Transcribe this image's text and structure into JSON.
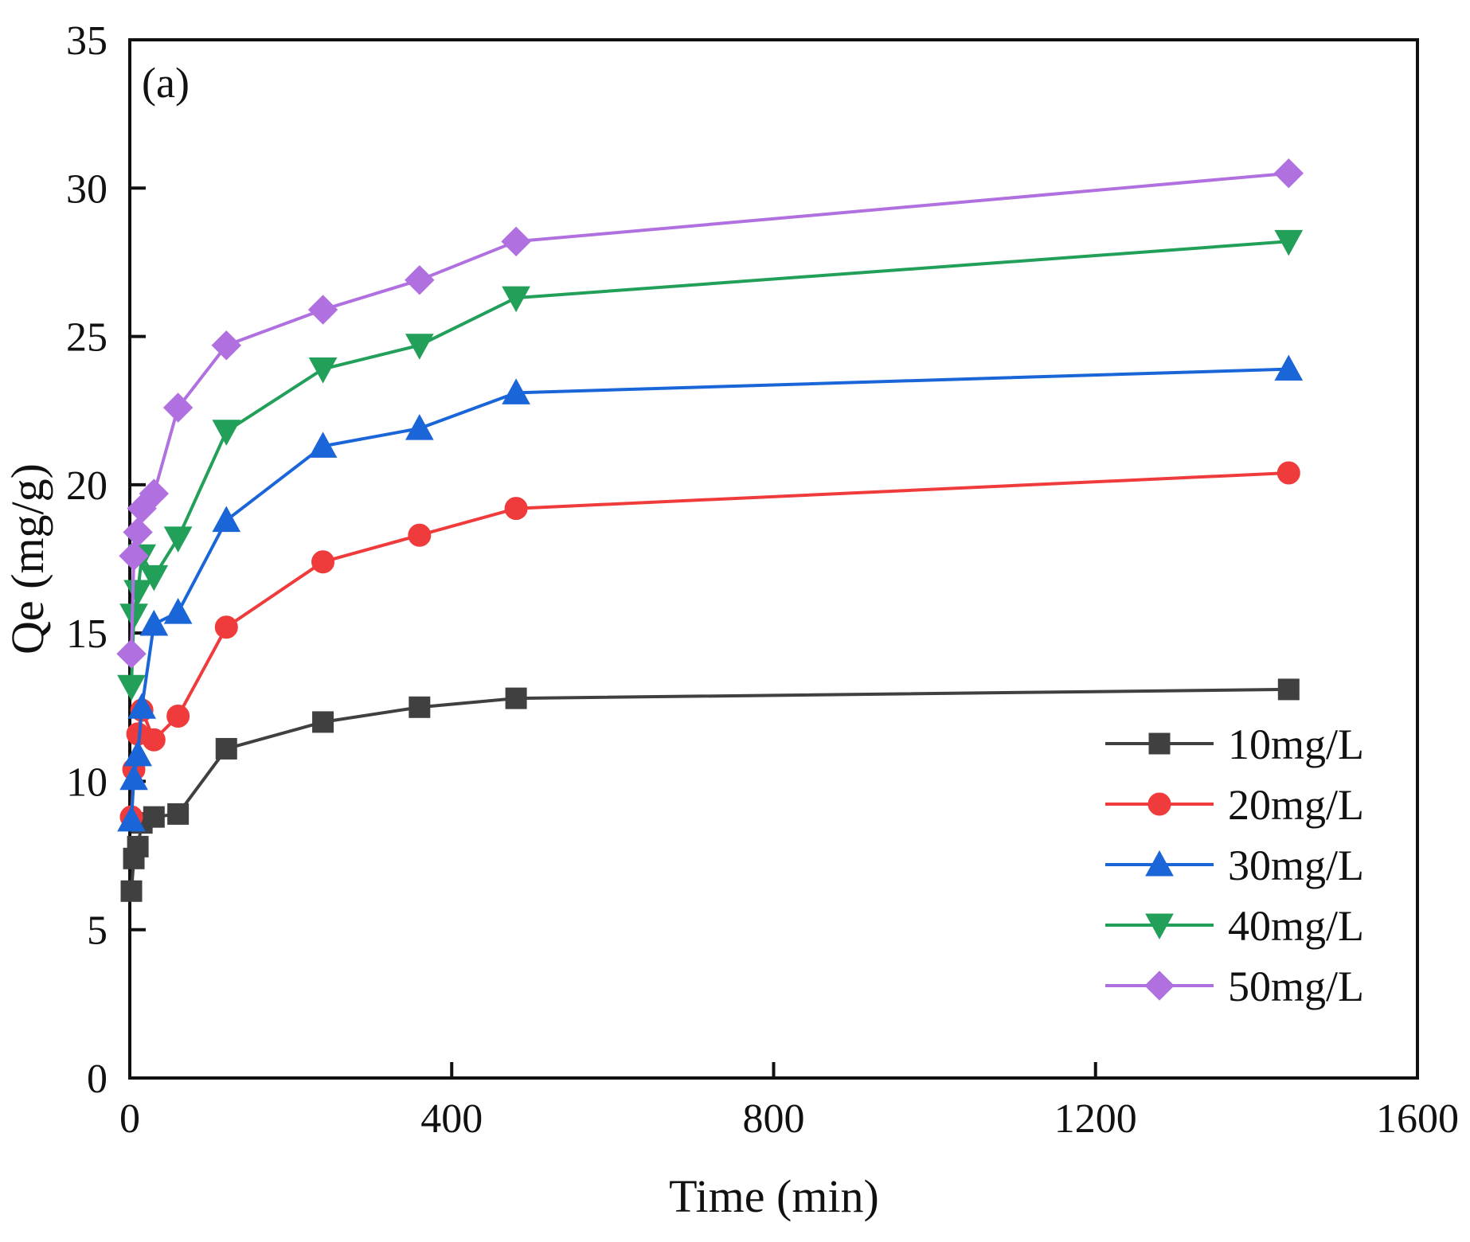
{
  "chart_data": {
    "type": "line",
    "panel_label": "(a)",
    "xlabel": "Time (min)",
    "ylabel": "Qe (mg/g)",
    "xlim": [
      0,
      1600
    ],
    "ylim": [
      0,
      35
    ],
    "xticks": [
      0,
      400,
      800,
      1200,
      1600
    ],
    "yticks": [
      0,
      5,
      10,
      15,
      20,
      25,
      30,
      35
    ],
    "grid": false,
    "legend_position": "lower-right",
    "series": [
      {
        "name": "10mg/L",
        "color": "#404040",
        "marker": "square",
        "x": [
          2,
          5,
          10,
          15,
          30,
          60,
          120,
          240,
          360,
          480,
          1440
        ],
        "y": [
          6.3,
          7.4,
          7.8,
          8.6,
          8.8,
          8.9,
          11.1,
          12.0,
          12.5,
          12.8,
          13.1
        ]
      },
      {
        "name": "20mg/L",
        "color": "#ef3b3b",
        "marker": "circle",
        "x": [
          2,
          5,
          10,
          15,
          30,
          60,
          120,
          240,
          360,
          480,
          1440
        ],
        "y": [
          8.8,
          10.4,
          11.6,
          12.4,
          11.4,
          12.2,
          15.2,
          17.4,
          18.3,
          19.2,
          20.4
        ]
      },
      {
        "name": "30mg/L",
        "color": "#1a66d9",
        "marker": "triangle-up",
        "x": [
          2,
          5,
          10,
          15,
          30,
          60,
          120,
          240,
          360,
          480,
          1440
        ],
        "y": [
          8.7,
          10.1,
          10.9,
          12.5,
          15.3,
          15.7,
          18.8,
          21.3,
          21.9,
          23.1,
          23.9
        ]
      },
      {
        "name": "40mg/L",
        "color": "#22a05a",
        "marker": "triangle-down",
        "x": [
          2,
          5,
          10,
          15,
          30,
          60,
          120,
          240,
          360,
          480,
          1440
        ],
        "y": [
          13.2,
          15.6,
          16.4,
          17.6,
          16.9,
          18.2,
          21.8,
          23.9,
          24.7,
          26.3,
          28.2
        ]
      },
      {
        "name": "50mg/L",
        "color": "#b070e0",
        "marker": "diamond",
        "x": [
          2,
          5,
          10,
          15,
          30,
          60,
          120,
          240,
          360,
          480,
          1440
        ],
        "y": [
          14.3,
          17.6,
          18.4,
          19.2,
          19.7,
          22.6,
          24.7,
          25.9,
          26.9,
          28.2,
          30.5
        ]
      }
    ]
  }
}
